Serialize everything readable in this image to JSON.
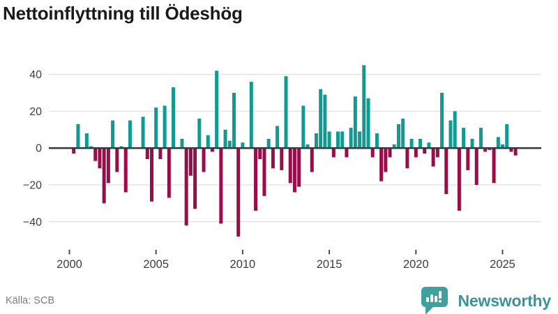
{
  "title": "Nettoinflyttning till Ödeshög",
  "source": {
    "label": "Källa: SCB"
  },
  "branding": {
    "name": "Newsworthy",
    "icon": "bar-chart-speech-bubble-icon"
  },
  "colors": {
    "positive_bar": "#119a92",
    "negative_bar": "#9b0d48",
    "gridline": "#e4e4e4",
    "zero_line": "#37383a",
    "axis_text": "#3e3e3e",
    "title_text": "#1a1a1a",
    "source_text": "#7b7b7b",
    "brand_teal": "#3e929a",
    "logo_bubble": "#3fa0a0"
  },
  "chart_data": {
    "type": "bar",
    "title": "Nettoinflyttning till Ödeshög",
    "xlabel": "",
    "ylabel": "",
    "frequency": "quarterly",
    "start_period": "2000-Q1",
    "end_period": "2025-Q4",
    "x_tick_labels": [
      "2000",
      "2005",
      "2010",
      "2015",
      "2020",
      "2025"
    ],
    "x_tick_quarter_index": [
      0,
      20,
      40,
      60,
      80,
      100
    ],
    "y_ticks": [
      40,
      20,
      0,
      -20,
      -40
    ],
    "ylim": [
      -52,
      48
    ],
    "grid": "horizontal",
    "legend": "none",
    "series": [
      {
        "name": "Nettoinflyttning",
        "values": [
          0,
          -3,
          13,
          0,
          8,
          1,
          -7,
          -11,
          -30,
          -19,
          15,
          -13,
          1,
          -24,
          15,
          0,
          0,
          17,
          -6,
          -29,
          22,
          -6,
          23,
          -27,
          33,
          0,
          5,
          -42,
          -15,
          -33,
          16,
          -13,
          7,
          -2,
          42,
          -41,
          10,
          4,
          30,
          -48,
          3,
          0,
          36,
          -34,
          -6,
          -26,
          5,
          -11,
          12,
          -12,
          39,
          -19,
          -24,
          -21,
          23,
          2,
          -13,
          8,
          32,
          29,
          9,
          -5,
          9,
          9,
          -5,
          11,
          28,
          9,
          45,
          27,
          -5,
          8,
          -18,
          -13,
          -5,
          2,
          13,
          16,
          -11,
          5,
          -5,
          5,
          -3,
          3,
          -10,
          -5,
          30,
          -25,
          15,
          20,
          -34,
          11,
          -12,
          5,
          -20,
          11,
          -2,
          -1,
          -19,
          6,
          2,
          13,
          -2,
          -4
        ]
      }
    ]
  }
}
